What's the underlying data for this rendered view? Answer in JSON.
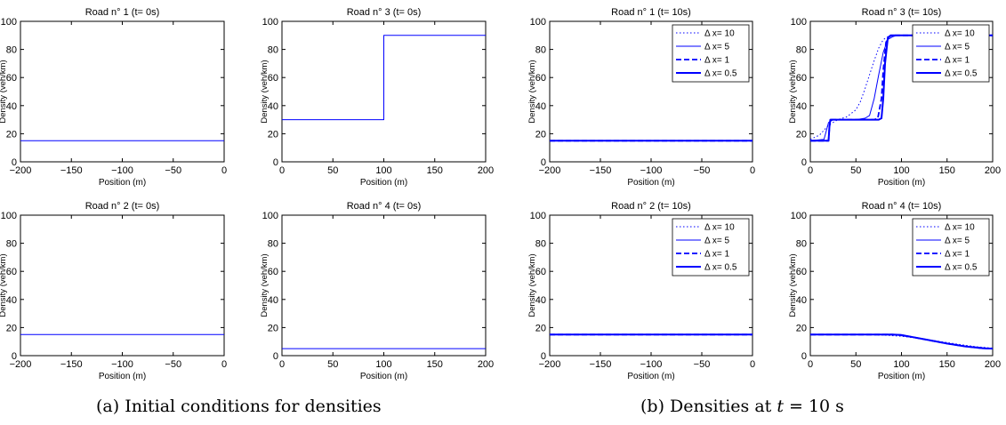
{
  "captions": {
    "a": "(a) Initial conditions for densities",
    "b_prefix": "(b) Densities at ",
    "b_math": "t",
    "b_suffix": " = 10 s"
  },
  "colors": {
    "series": "#0000ff",
    "axis": "#000000"
  },
  "chart_data": [
    {
      "id": "a-road1",
      "type": "line",
      "title": "Road n° 1 (t= 0s)",
      "xlabel": "Position (m)",
      "ylabel": "Density (veh/km)",
      "xlim": [
        -200,
        0
      ],
      "ylim": [
        0,
        100
      ],
      "xticks": [
        "-200",
        "-150",
        "-100",
        "-50",
        "0"
      ],
      "xtick_values": [
        -200,
        -150,
        -100,
        -50,
        0
      ],
      "yticks": [
        "0",
        "20",
        "40",
        "60",
        "80",
        "100"
      ],
      "grid": false,
      "legend": null,
      "series": [
        {
          "style": "thin",
          "x": [
            -200,
            0
          ],
          "y": [
            15,
            15
          ]
        }
      ]
    },
    {
      "id": "a-road3",
      "type": "line",
      "title": "Road n° 3 (t= 0s)",
      "xlabel": "Position (m)",
      "ylabel": "Density (veh/km)",
      "xlim": [
        0,
        200
      ],
      "ylim": [
        0,
        100
      ],
      "xticks": [
        "0",
        "50",
        "100",
        "150",
        "200"
      ],
      "xtick_values": [
        0,
        50,
        100,
        150,
        200
      ],
      "yticks": [
        "0",
        "20",
        "40",
        "60",
        "80",
        "100"
      ],
      "grid": false,
      "legend": null,
      "series": [
        {
          "style": "thin",
          "x": [
            0,
            100,
            100,
            200
          ],
          "y": [
            30,
            30,
            90,
            90
          ]
        }
      ]
    },
    {
      "id": "a-road2",
      "type": "line",
      "title": "Road n° 2 (t= 0s)",
      "xlabel": "Position (m)",
      "ylabel": "Density (veh/km)",
      "xlim": [
        -200,
        0
      ],
      "ylim": [
        0,
        100
      ],
      "xticks": [
        "-200",
        "-150",
        "-100",
        "-50",
        "0"
      ],
      "xtick_values": [
        -200,
        -150,
        -100,
        -50,
        0
      ],
      "yticks": [
        "0",
        "20",
        "40",
        "60",
        "80",
        "100"
      ],
      "grid": false,
      "legend": null,
      "series": [
        {
          "style": "thin",
          "x": [
            -200,
            0
          ],
          "y": [
            15,
            15
          ]
        }
      ]
    },
    {
      "id": "a-road4",
      "type": "line",
      "title": "Road n° 4 (t= 0s)",
      "xlabel": "Position (m)",
      "ylabel": "Density (veh/km)",
      "xlim": [
        0,
        200
      ],
      "ylim": [
        0,
        100
      ],
      "xticks": [
        "0",
        "50",
        "100",
        "150",
        "200"
      ],
      "xtick_values": [
        0,
        50,
        100,
        150,
        200
      ],
      "yticks": [
        "0",
        "20",
        "40",
        "60",
        "80",
        "100"
      ],
      "grid": false,
      "legend": null,
      "series": [
        {
          "style": "thin",
          "x": [
            0,
            200
          ],
          "y": [
            5,
            5
          ]
        }
      ]
    },
    {
      "id": "b-road1",
      "type": "line",
      "title": "Road n° 1 (t= 10s)",
      "xlabel": "Position (m)",
      "ylabel": "Density (veh/km)",
      "xlim": [
        -200,
        0
      ],
      "ylim": [
        0,
        100
      ],
      "xticks": [
        "-200",
        "-150",
        "-100",
        "-50",
        "0"
      ],
      "xtick_values": [
        -200,
        -150,
        -100,
        -50,
        0
      ],
      "yticks": [
        "0",
        "20",
        "40",
        "60",
        "80",
        "100"
      ],
      "grid": false,
      "legend": "top-right",
      "series": [
        {
          "name": "Δ x= 10",
          "style": "dotted",
          "x": [
            -200,
            0
          ],
          "y": [
            15,
            15
          ]
        },
        {
          "name": "Δ x= 5",
          "style": "thin",
          "x": [
            -200,
            0
          ],
          "y": [
            15,
            15
          ]
        },
        {
          "name": "Δ x= 1",
          "style": "dashed",
          "x": [
            -200,
            0
          ],
          "y": [
            15,
            15
          ]
        },
        {
          "name": "Δ x= 0.5",
          "style": "thick",
          "x": [
            -200,
            0
          ],
          "y": [
            15,
            15
          ]
        }
      ]
    },
    {
      "id": "b-road3",
      "type": "line",
      "title": "Road n° 3 (t= 10s)",
      "xlabel": "Position (m)",
      "ylabel": "Density (veh/km)",
      "xlim": [
        0,
        200
      ],
      "ylim": [
        0,
        100
      ],
      "xticks": [
        "0",
        "50",
        "100",
        "150",
        "200"
      ],
      "xtick_values": [
        0,
        50,
        100,
        150,
        200
      ],
      "yticks": [
        "0",
        "20",
        "40",
        "60",
        "80",
        "100"
      ],
      "grid": false,
      "legend": "top-right",
      "series": [
        {
          "name": "Δ x= 10",
          "style": "dotted",
          "x": [
            0,
            10,
            20,
            30,
            40,
            50,
            55,
            60,
            65,
            70,
            75,
            80,
            85,
            90,
            100,
            200
          ],
          "y": [
            16,
            19,
            26,
            30,
            32,
            37,
            43,
            52,
            62,
            72,
            81,
            87,
            89,
            90,
            90,
            90
          ]
        },
        {
          "name": "Δ x= 5",
          "style": "thin",
          "x": [
            0,
            15,
            20,
            25,
            50,
            60,
            65,
            70,
            75,
            80,
            85,
            90,
            95,
            200
          ],
          "y": [
            15,
            16,
            28,
            30,
            30,
            31,
            33,
            45,
            62,
            78,
            87,
            89,
            90,
            90
          ]
        },
        {
          "name": "Δ x= 1",
          "style": "dashed",
          "x": [
            0,
            20,
            21,
            22,
            70,
            74,
            78,
            80,
            83,
            86,
            90,
            200
          ],
          "y": [
            15,
            15,
            25,
            30,
            30,
            31,
            45,
            65,
            85,
            89,
            90,
            90
          ]
        },
        {
          "name": "Δ x= 0.5",
          "style": "thick",
          "x": [
            0,
            20,
            21,
            22,
            75,
            78,
            80,
            82,
            85,
            88,
            200
          ],
          "y": [
            15,
            15,
            25,
            30,
            30,
            31,
            45,
            70,
            88,
            90,
            90
          ]
        }
      ]
    },
    {
      "id": "b-road2",
      "type": "line",
      "title": "Road n° 2 (t= 10s)",
      "xlabel": "Position (m)",
      "ylabel": "Density (veh/km)",
      "xlim": [
        -200,
        0
      ],
      "ylim": [
        0,
        100
      ],
      "xticks": [
        "-200",
        "-150",
        "-100",
        "-50",
        "0"
      ],
      "xtick_values": [
        -200,
        -150,
        -100,
        -50,
        0
      ],
      "yticks": [
        "0",
        "20",
        "40",
        "60",
        "80",
        "100"
      ],
      "grid": false,
      "legend": "top-right",
      "series": [
        {
          "name": "Δ x= 10",
          "style": "dotted",
          "x": [
            -200,
            0
          ],
          "y": [
            15,
            15
          ]
        },
        {
          "name": "Δ x= 5",
          "style": "thin",
          "x": [
            -200,
            0
          ],
          "y": [
            15,
            15
          ]
        },
        {
          "name": "Δ x= 1",
          "style": "dashed",
          "x": [
            -200,
            0
          ],
          "y": [
            15,
            15
          ]
        },
        {
          "name": "Δ x= 0.5",
          "style": "thick",
          "x": [
            -200,
            0
          ],
          "y": [
            15,
            15
          ]
        }
      ]
    },
    {
      "id": "b-road4",
      "type": "line",
      "title": "Road n° 4 (t= 10s)",
      "xlabel": "Position (m)",
      "ylabel": "Density (veh/km)",
      "xlim": [
        0,
        200
      ],
      "ylim": [
        0,
        100
      ],
      "xticks": [
        "0",
        "50",
        "100",
        "150",
        "200"
      ],
      "xtick_values": [
        0,
        50,
        100,
        150,
        200
      ],
      "yticks": [
        "0",
        "20",
        "40",
        "60",
        "80",
        "100"
      ],
      "grid": false,
      "legend": "top-right",
      "series": [
        {
          "name": "Δ x= 10",
          "style": "dotted",
          "x": [
            0,
            60,
            80,
            100,
            120,
            140,
            160,
            180,
            200
          ],
          "y": [
            15,
            15,
            14.6,
            13.8,
            12.2,
            10.3,
            8.3,
            6.5,
            5.3
          ]
        },
        {
          "name": "Δ x= 5",
          "style": "thin",
          "x": [
            0,
            80,
            95,
            110,
            130,
            150,
            170,
            190,
            200
          ],
          "y": [
            15,
            15,
            14.6,
            13.2,
            11,
            8.8,
            6.9,
            5.5,
            5.1
          ]
        },
        {
          "name": "Δ x= 1",
          "style": "dashed",
          "x": [
            0,
            90,
            100,
            110,
            130,
            150,
            170,
            190,
            200
          ],
          "y": [
            15,
            15,
            14.6,
            13.4,
            11,
            8.6,
            6.6,
            5.2,
            5
          ]
        },
        {
          "name": "Δ x= 0.5",
          "style": "thick",
          "x": [
            0,
            90,
            100,
            110,
            130,
            150,
            170,
            190,
            200
          ],
          "y": [
            15,
            15,
            14.7,
            13.5,
            11.1,
            8.6,
            6.6,
            5.2,
            5
          ]
        }
      ]
    }
  ]
}
